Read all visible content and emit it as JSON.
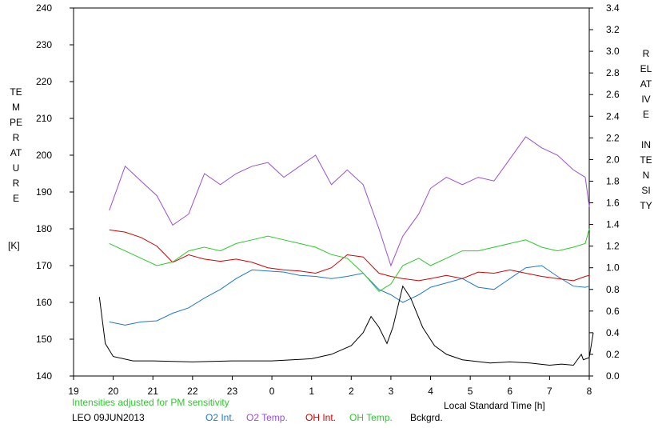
{
  "chart_data": {
    "type": "line",
    "annotation": "Intensities adjusted for PM sensitivity",
    "station_date": "LEO 09JUN2013",
    "xlabel": "Local Standard Time [h]",
    "ylabel_left": "TEMPERATURE",
    "ylabel_left_unit": "[K]",
    "ylabel_right": "RELATIVE INTENSITY",
    "x_ticks": [
      "19",
      "20",
      "21",
      "22",
      "23",
      "0",
      "1",
      "2",
      "3",
      "4",
      "5",
      "6",
      "7",
      "8"
    ],
    "y_left_ticks": [
      "140",
      "150",
      "160",
      "170",
      "180",
      "190",
      "200",
      "210",
      "220",
      "230",
      "240"
    ],
    "y_right_ticks": [
      "0.0",
      "0.2",
      "0.4",
      "0.6",
      "0.8",
      "1.0",
      "1.2",
      "1.4",
      "1.6",
      "1.8",
      "2.0",
      "2.2",
      "2.4",
      "2.6",
      "2.8",
      "3.0",
      "3.2",
      "3.4"
    ],
    "ylim_left": [
      140,
      240
    ],
    "ylim_right": [
      0.0,
      3.4
    ],
    "xlim_hours_after_19": [
      0,
      13
    ],
    "grid": false,
    "legend_position": "bottom",
    "series": [
      {
        "name": "O2 Int.",
        "axis": "right",
        "color": "#1f78d0",
        "points": [
          [
            0.9,
            0.5
          ],
          [
            1.3,
            0.47
          ],
          [
            1.7,
            0.5
          ],
          [
            2.1,
            0.51
          ],
          [
            2.5,
            0.58
          ],
          [
            2.9,
            0.63
          ],
          [
            3.3,
            0.72
          ],
          [
            3.7,
            0.8
          ],
          [
            4.1,
            0.9
          ],
          [
            4.5,
            0.98
          ],
          [
            4.9,
            0.97
          ],
          [
            5.3,
            0.96
          ],
          [
            5.7,
            0.93
          ],
          [
            6.1,
            0.92
          ],
          [
            6.5,
            0.9
          ],
          [
            6.9,
            0.92
          ],
          [
            7.3,
            0.95
          ],
          [
            7.7,
            0.8
          ],
          [
            8.0,
            0.75
          ],
          [
            8.3,
            0.68
          ],
          [
            8.7,
            0.75
          ],
          [
            9.0,
            0.82
          ],
          [
            9.4,
            0.86
          ],
          [
            9.8,
            0.9
          ],
          [
            10.2,
            0.82
          ],
          [
            10.6,
            0.8
          ],
          [
            11.0,
            0.9
          ],
          [
            11.4,
            1.0
          ],
          [
            11.8,
            1.02
          ],
          [
            12.2,
            0.92
          ],
          [
            12.6,
            0.83
          ],
          [
            12.9,
            0.82
          ],
          [
            13.0,
            0.83
          ]
        ]
      },
      {
        "name": "O2 Temp.",
        "axis": "left",
        "color": "#9a4fd6",
        "points": [
          [
            0.9,
            185
          ],
          [
            1.3,
            197
          ],
          [
            1.7,
            193
          ],
          [
            2.1,
            189
          ],
          [
            2.5,
            181
          ],
          [
            2.9,
            184
          ],
          [
            3.3,
            195
          ],
          [
            3.7,
            192
          ],
          [
            4.1,
            195
          ],
          [
            4.5,
            197
          ],
          [
            4.9,
            198
          ],
          [
            5.3,
            194
          ],
          [
            5.7,
            197
          ],
          [
            6.1,
            200
          ],
          [
            6.5,
            192
          ],
          [
            6.9,
            196
          ],
          [
            7.3,
            192
          ],
          [
            7.7,
            180
          ],
          [
            8.0,
            170
          ],
          [
            8.3,
            178
          ],
          [
            8.7,
            184
          ],
          [
            9.0,
            191
          ],
          [
            9.4,
            194
          ],
          [
            9.8,
            192
          ],
          [
            10.2,
            194
          ],
          [
            10.6,
            193
          ],
          [
            11.0,
            199
          ],
          [
            11.4,
            205
          ],
          [
            11.8,
            202
          ],
          [
            12.2,
            200
          ],
          [
            12.6,
            196
          ],
          [
            12.9,
            194
          ],
          [
            13.0,
            186
          ]
        ]
      },
      {
        "name": "OH Int.",
        "axis": "right",
        "color": "#d40000",
        "points": [
          [
            0.9,
            1.35
          ],
          [
            1.3,
            1.33
          ],
          [
            1.7,
            1.28
          ],
          [
            2.1,
            1.2
          ],
          [
            2.5,
            1.05
          ],
          [
            2.9,
            1.12
          ],
          [
            3.3,
            1.08
          ],
          [
            3.7,
            1.06
          ],
          [
            4.1,
            1.08
          ],
          [
            4.5,
            1.05
          ],
          [
            4.9,
            1.0
          ],
          [
            5.3,
            0.98
          ],
          [
            5.7,
            0.97
          ],
          [
            6.1,
            0.95
          ],
          [
            6.5,
            1.0
          ],
          [
            6.9,
            1.12
          ],
          [
            7.3,
            1.1
          ],
          [
            7.7,
            0.95
          ],
          [
            8.0,
            0.92
          ],
          [
            8.3,
            0.9
          ],
          [
            8.7,
            0.88
          ],
          [
            9.0,
            0.9
          ],
          [
            9.4,
            0.93
          ],
          [
            9.8,
            0.9
          ],
          [
            10.2,
            0.96
          ],
          [
            10.6,
            0.95
          ],
          [
            11.0,
            0.98
          ],
          [
            11.4,
            0.95
          ],
          [
            11.8,
            0.92
          ],
          [
            12.2,
            0.9
          ],
          [
            12.6,
            0.88
          ],
          [
            12.9,
            0.92
          ],
          [
            13.0,
            0.93
          ]
        ]
      },
      {
        "name": "OH Temp.",
        "axis": "left",
        "color": "#28cc28",
        "points": [
          [
            0.9,
            176
          ],
          [
            1.3,
            174
          ],
          [
            1.7,
            172
          ],
          [
            2.1,
            170
          ],
          [
            2.5,
            171
          ],
          [
            2.9,
            174
          ],
          [
            3.3,
            175
          ],
          [
            3.7,
            174
          ],
          [
            4.1,
            176
          ],
          [
            4.5,
            177
          ],
          [
            4.9,
            178
          ],
          [
            5.3,
            177
          ],
          [
            5.7,
            176
          ],
          [
            6.1,
            175
          ],
          [
            6.5,
            173
          ],
          [
            6.9,
            172
          ],
          [
            7.3,
            168
          ],
          [
            7.7,
            163
          ],
          [
            8.0,
            165
          ],
          [
            8.3,
            170
          ],
          [
            8.7,
            172
          ],
          [
            9.0,
            170
          ],
          [
            9.4,
            172
          ],
          [
            9.8,
            174
          ],
          [
            10.2,
            174
          ],
          [
            10.6,
            175
          ],
          [
            11.0,
            176
          ],
          [
            11.4,
            177
          ],
          [
            11.8,
            175
          ],
          [
            12.2,
            174
          ],
          [
            12.6,
            175
          ],
          [
            12.9,
            176
          ],
          [
            13.0,
            180
          ]
        ]
      },
      {
        "name": "Bckgrd.",
        "axis": "right",
        "color": "#000000",
        "points": [
          [
            0.65,
            0.73
          ],
          [
            0.8,
            0.3
          ],
          [
            1.0,
            0.18
          ],
          [
            1.5,
            0.14
          ],
          [
            2.0,
            0.14
          ],
          [
            3.0,
            0.13
          ],
          [
            4.0,
            0.14
          ],
          [
            5.0,
            0.14
          ],
          [
            6.0,
            0.16
          ],
          [
            6.5,
            0.2
          ],
          [
            7.0,
            0.28
          ],
          [
            7.3,
            0.4
          ],
          [
            7.5,
            0.55
          ],
          [
            7.7,
            0.45
          ],
          [
            7.9,
            0.3
          ],
          [
            8.05,
            0.45
          ],
          [
            8.3,
            0.83
          ],
          [
            8.5,
            0.72
          ],
          [
            8.8,
            0.45
          ],
          [
            9.1,
            0.28
          ],
          [
            9.4,
            0.2
          ],
          [
            9.8,
            0.15
          ],
          [
            10.5,
            0.12
          ],
          [
            11.0,
            0.13
          ],
          [
            11.5,
            0.12
          ],
          [
            12.0,
            0.1
          ],
          [
            12.3,
            0.11
          ],
          [
            12.6,
            0.1
          ],
          [
            12.8,
            0.2
          ],
          [
            12.85,
            0.15
          ],
          [
            13.0,
            0.17
          ],
          [
            13.1,
            0.4
          ]
        ]
      }
    ]
  }
}
